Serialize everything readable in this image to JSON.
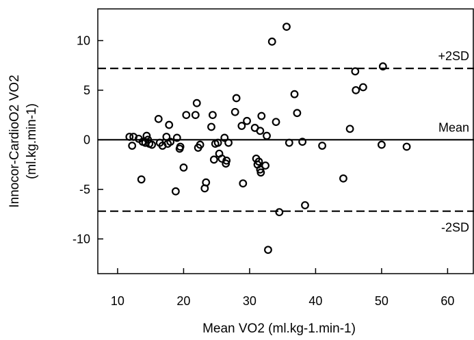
{
  "chart_data": {
    "type": "scatter",
    "title": "",
    "xlabel": "Mean VO2 (ml.kg-1.min-1)",
    "ylabel_lines": [
      "Innocor-CardioO2 VO2",
      "(ml.kg.min-1)"
    ],
    "xlim": [
      7,
      64
    ],
    "ylim": [
      -13.5,
      13.2
    ],
    "xticks": [
      10,
      20,
      30,
      40,
      50,
      60
    ],
    "yticks": [
      10,
      5,
      0,
      -5,
      -10
    ],
    "grid": false,
    "reference_lines": [
      {
        "label": "+2SD",
        "y": 7.2,
        "style": "dashed"
      },
      {
        "label": "Mean",
        "y": 0.0,
        "style": "solid"
      },
      {
        "label": "-2SD",
        "y": -7.2,
        "style": "dashed"
      }
    ],
    "series": [
      {
        "marker": "open-circle",
        "points": [
          [
            11.8,
            0.3
          ],
          [
            12.2,
            -0.6
          ],
          [
            12.4,
            0.3
          ],
          [
            13.2,
            0.1
          ],
          [
            13.6,
            -4.0
          ],
          [
            13.8,
            -0.2
          ],
          [
            14.2,
            -0.3
          ],
          [
            14.4,
            0.4
          ],
          [
            14.6,
            0.0
          ],
          [
            14.8,
            -0.4
          ],
          [
            15.2,
            -0.5
          ],
          [
            16.2,
            2.1
          ],
          [
            16.4,
            -0.3
          ],
          [
            16.8,
            -0.6
          ],
          [
            17.4,
            0.3
          ],
          [
            17.6,
            -0.4
          ],
          [
            17.8,
            1.5
          ],
          [
            18.0,
            -0.2
          ],
          [
            18.8,
            -5.2
          ],
          [
            19.0,
            0.2
          ],
          [
            19.4,
            -0.9
          ],
          [
            19.5,
            -0.7
          ],
          [
            20.0,
            -2.8
          ],
          [
            20.4,
            2.5
          ],
          [
            21.8,
            2.5
          ],
          [
            22.0,
            3.7
          ],
          [
            22.2,
            -0.8
          ],
          [
            22.5,
            -0.5
          ],
          [
            23.2,
            -4.9
          ],
          [
            23.4,
            -4.3
          ],
          [
            24.2,
            1.3
          ],
          [
            24.4,
            2.5
          ],
          [
            24.6,
            -2.0
          ],
          [
            24.8,
            -0.4
          ],
          [
            25.2,
            -0.3
          ],
          [
            25.4,
            -1.4
          ],
          [
            25.8,
            -1.9
          ],
          [
            26.2,
            0.2
          ],
          [
            26.4,
            -2.4
          ],
          [
            26.5,
            -2.1
          ],
          [
            26.8,
            -0.3
          ],
          [
            27.8,
            2.8
          ],
          [
            28.0,
            4.2
          ],
          [
            28.8,
            1.4
          ],
          [
            29.0,
            -4.4
          ],
          [
            29.6,
            1.9
          ],
          [
            30.8,
            1.2
          ],
          [
            31.0,
            -1.9
          ],
          [
            31.2,
            -2.5
          ],
          [
            31.4,
            -2.2
          ],
          [
            31.6,
            0.9
          ],
          [
            31.7,
            -3.3
          ],
          [
            31.8,
            2.4
          ],
          [
            31.6,
            -3.0
          ],
          [
            32.4,
            -2.6
          ],
          [
            32.6,
            0.4
          ],
          [
            32.8,
            -11.1
          ],
          [
            33.4,
            9.9
          ],
          [
            34.0,
            1.8
          ],
          [
            34.5,
            -7.3
          ],
          [
            35.6,
            11.4
          ],
          [
            36.0,
            -0.3
          ],
          [
            36.8,
            4.6
          ],
          [
            37.2,
            2.7
          ],
          [
            38.0,
            -0.2
          ],
          [
            38.4,
            -6.6
          ],
          [
            41.0,
            -0.6
          ],
          [
            44.2,
            -3.9
          ],
          [
            45.2,
            1.1
          ],
          [
            46.0,
            6.9
          ],
          [
            46.1,
            5.0
          ],
          [
            47.2,
            5.3
          ],
          [
            50.0,
            -0.5
          ],
          [
            50.2,
            7.4
          ],
          [
            53.8,
            -0.7
          ]
        ]
      }
    ]
  }
}
